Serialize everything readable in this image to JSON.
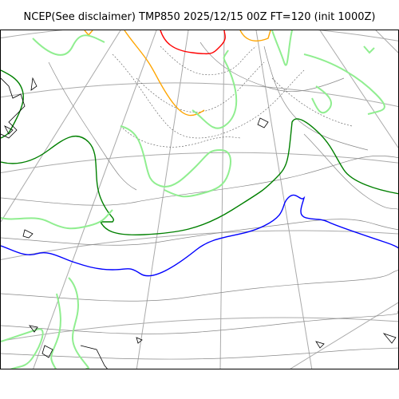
{
  "title": "NCEP(See disclaimer) TMP850 2025/12/15 00Z FT=120 (init 1000Z)",
  "map": {
    "variable": "TMP850",
    "projection": "polar-stereographic",
    "colors": {
      "graticule": "#aaaaaa",
      "coastline": "#000000",
      "isotherm_minor": "#888888",
      "warm_front_line": "#ff0000",
      "orange_isotherm": "#ffa500",
      "green_isotherm": "#008000",
      "blue_isotherm": "#0000ff",
      "precip_outline": "#90ee90"
    }
  }
}
